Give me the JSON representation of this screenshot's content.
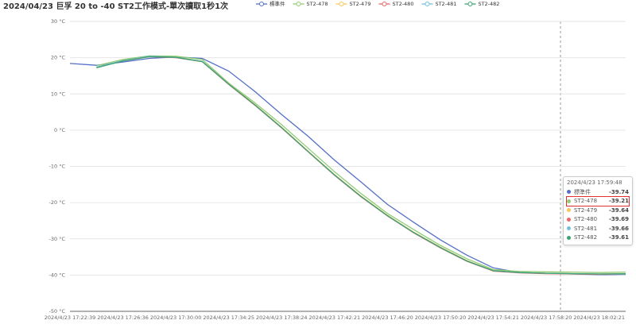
{
  "chart_data": {
    "type": "line",
    "title": "2024/04/23 巨孚 20 to -40 ST2工作模式-單次讀取1秒1次",
    "categories": [
      "2024/4/23 17:22:39",
      null,
      "2024/4/23 17:26:36",
      null,
      "2024/4/23 17:30:00",
      null,
      "2024/4/23 17:34:25",
      null,
      "2024/4/23 17:38:24",
      null,
      "2024/4/23 17:42:21",
      null,
      "2024/4/23 17:46:20",
      null,
      "2024/4/23 17:50:20",
      null,
      "2024/4/23 17:54:21",
      null,
      "2024/4/23 17:58:20",
      null,
      "2024/4/23 18:02:21",
      null
    ],
    "ylim": [
      -50,
      30
    ],
    "yticks": [
      {
        "value": -50,
        "label": "-50 °C"
      },
      {
        "value": -40,
        "label": "-40 °C"
      },
      {
        "value": -30,
        "label": "-30 °C"
      },
      {
        "value": -20,
        "label": "-20 °C"
      },
      {
        "value": -10,
        "label": "-10 °C"
      },
      {
        "value": 0,
        "label": "0 °C"
      },
      {
        "value": 10,
        "label": "10 °C"
      },
      {
        "value": 20,
        "label": "20 °C"
      },
      {
        "value": 30,
        "label": "30 °C"
      }
    ],
    "grid": true,
    "series": [
      {
        "name": "標準件",
        "color": "#5470c6",
        "values": [
          18.4,
          17.9,
          18.8,
          19.8,
          20.2,
          19.8,
          16.3,
          10.6,
          4.3,
          -1.7,
          -8.3,
          -14.3,
          -20.5,
          -25.5,
          -30.3,
          -34.5,
          -38.0,
          -39.3,
          -39.5,
          -39.7,
          -39.9,
          -39.8
        ]
      },
      {
        "name": "ST2-478",
        "color": "#91cc75",
        "values": [
          null,
          17.8,
          19.5,
          20.5,
          20.4,
          19.5,
          13.0,
          7.5,
          1.5,
          -5.0,
          -11.5,
          -17.5,
          -23.0,
          -27.5,
          -31.8,
          -35.5,
          -38.5,
          -39.0,
          -39.1,
          -39.2,
          -39.3,
          -39.2
        ]
      },
      {
        "name": "ST2-479",
        "color": "#fac858",
        "values": [
          null,
          17.4,
          19.2,
          20.4,
          20.1,
          19.0,
          12.8,
          7.0,
          0.8,
          -5.8,
          -12.3,
          -18.2,
          -23.5,
          -28.2,
          -32.3,
          -36.0,
          -38.8,
          -39.3,
          -39.5,
          -39.6,
          -39.7,
          -39.6
        ]
      },
      {
        "name": "ST2-480",
        "color": "#ee6666",
        "values": [
          null,
          17.3,
          19.1,
          20.3,
          20.0,
          18.9,
          12.6,
          6.8,
          0.6,
          -6.0,
          -12.5,
          -18.4,
          -23.7,
          -28.4,
          -32.5,
          -36.2,
          -38.9,
          -39.4,
          -39.6,
          -39.7,
          -39.8,
          -39.7
        ]
      },
      {
        "name": "ST2-481",
        "color": "#73c0de",
        "values": [
          null,
          17.4,
          19.2,
          20.4,
          20.1,
          19.0,
          12.7,
          6.9,
          0.7,
          -5.9,
          -12.4,
          -18.3,
          -23.6,
          -28.3,
          -32.4,
          -36.1,
          -38.8,
          -39.3,
          -39.5,
          -39.6,
          -39.7,
          -39.7
        ]
      },
      {
        "name": "ST2-482",
        "color": "#3ba272",
        "values": [
          null,
          17.2,
          19.1,
          20.3,
          20.1,
          18.9,
          12.7,
          6.9,
          0.7,
          -5.9,
          -12.4,
          -18.3,
          -23.6,
          -28.3,
          -32.4,
          -36.1,
          -38.8,
          -39.3,
          -39.5,
          -39.6,
          -39.7,
          -39.6
        ]
      }
    ],
    "tooltip": {
      "title": "2024/4/23 17:59:48",
      "values": [
        -39.74,
        -39.21,
        -39.64,
        -39.69,
        -39.66,
        -39.61
      ],
      "highlight": 1
    }
  }
}
